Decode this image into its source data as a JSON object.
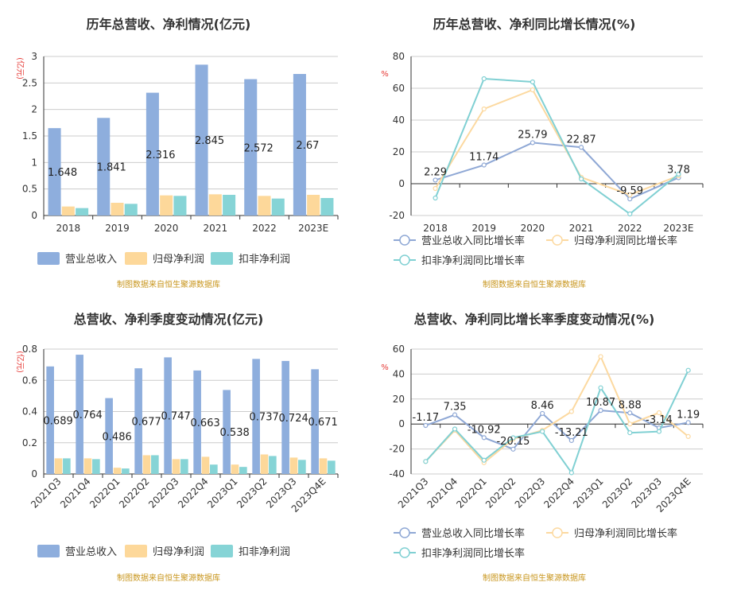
{
  "colors": {
    "revenue": "#8eaedd",
    "net_profit": "#fdd89a",
    "deducted_profit": "#86d4d6",
    "revenue_line": "#8fa8d5",
    "net_profit_line": "#fcd9a0",
    "deducted_line": "#80d0d3",
    "unit_text": "#e53935",
    "source_text": "#c8961e",
    "grid": "#cccccc"
  },
  "charts": [
    {
      "id": "annual-bar",
      "title": "历年总营收、净利情况(亿元)",
      "unit": "(亿元)",
      "source": "制图数据来自恒生聚源数据库",
      "legend": [
        "营业总收入",
        "归母净利润",
        "扣非净利润"
      ]
    },
    {
      "id": "annual-line",
      "title": "历年总营收、净利同比增长情况(%)",
      "unit": "%",
      "source": "制图数据来自恒生聚源数据库",
      "legend": [
        "营业总收入同比增长率",
        "归母净利润同比增长率",
        "扣非净利润同比增长率"
      ]
    },
    {
      "id": "quarter-bar",
      "title": "总营收、净利季度变动情况(亿元)",
      "unit": "(亿元)",
      "source": "制图数据来自恒生聚源数据库",
      "legend": [
        "营业总收入",
        "归母净利润",
        "扣非净利润"
      ]
    },
    {
      "id": "quarter-line",
      "title": "总营收、净利同比增长率季度变动情况(%)",
      "unit": "%",
      "source": "制图数据来自恒生聚源数据库",
      "legend": [
        "营业总收入同比增长率",
        "归母净利润同比增长率",
        "扣非净利润同比增长率"
      ]
    }
  ],
  "chart_data": [
    {
      "type": "bar",
      "title": "历年总营收、净利情况(亿元)",
      "ylabel": "(亿元)",
      "categories": [
        "2018",
        "2019",
        "2020",
        "2021",
        "2022",
        "2023E"
      ],
      "ylim": [
        0,
        3
      ],
      "yticks": [
        "0",
        "0.5",
        "1",
        "1.5",
        "2",
        "2.5",
        "3"
      ],
      "grid": true,
      "legend_position": "bottom",
      "series": [
        {
          "name": "营业总收入",
          "values": [
            1.648,
            1.841,
            2.316,
            2.845,
            2.572,
            2.67
          ],
          "labels": [
            "1.648",
            "1.841",
            "2.316",
            "2.845",
            "2.572",
            "2.67"
          ]
        },
        {
          "name": "归母净利润",
          "values": [
            0.17,
            0.24,
            0.38,
            0.4,
            0.37,
            0.39
          ]
        },
        {
          "name": "扣非净利润",
          "values": [
            0.14,
            0.22,
            0.37,
            0.39,
            0.32,
            0.33
          ]
        }
      ]
    },
    {
      "type": "line",
      "title": "历年总营收、净利同比增长情况(%)",
      "ylabel": "%",
      "categories": [
        "2018",
        "2019",
        "2020",
        "2021",
        "2022",
        "2023E"
      ],
      "ylim": [
        -20,
        80
      ],
      "yticks": [
        "-20",
        "0",
        "20",
        "40",
        "60",
        "80"
      ],
      "grid": true,
      "legend_position": "bottom",
      "series": [
        {
          "name": "营业总收入同比增长率",
          "values": [
            2.29,
            11.74,
            25.79,
            22.87,
            -9.59,
            3.78
          ],
          "labels": [
            "2.29",
            "11.74",
            "25.79",
            "22.87",
            "-9.59",
            "3.78"
          ]
        },
        {
          "name": "归母净利润同比增长率",
          "values": [
            -3,
            47,
            59,
            4,
            -7,
            5
          ]
        },
        {
          "name": "扣非净利润同比增长率",
          "values": [
            -9,
            66,
            64,
            3,
            -19,
            6
          ]
        }
      ]
    },
    {
      "type": "bar",
      "title": "总营收、净利季度变动情况(亿元)",
      "ylabel": "(亿元)",
      "categories": [
        "2021Q3",
        "2021Q4",
        "2022Q1",
        "2022Q2",
        "2022Q3",
        "2022Q4",
        "2023Q1",
        "2023Q2",
        "2023Q3",
        "2023Q4E"
      ],
      "ylim": [
        0,
        0.8
      ],
      "yticks": [
        "0",
        "0.2",
        "0.4",
        "0.6",
        "0.8"
      ],
      "grid": true,
      "legend_position": "bottom",
      "series": [
        {
          "name": "营业总收入",
          "values": [
            0.689,
            0.764,
            0.486,
            0.677,
            0.747,
            0.663,
            0.538,
            0.737,
            0.724,
            0.671
          ],
          "labels": [
            "0.689",
            "0.764",
            "0.486",
            "0.677",
            "0.747",
            "0.663",
            "0.538",
            "0.737",
            "0.724",
            "0.671"
          ]
        },
        {
          "name": "归母净利润",
          "values": [
            0.1,
            0.1,
            0.04,
            0.12,
            0.095,
            0.11,
            0.06,
            0.125,
            0.105,
            0.1
          ]
        },
        {
          "name": "扣非净利润",
          "values": [
            0.1,
            0.095,
            0.035,
            0.12,
            0.095,
            0.06,
            0.045,
            0.115,
            0.09,
            0.085
          ]
        }
      ]
    },
    {
      "type": "line",
      "title": "总营收、净利同比增长率季度变动情况(%)",
      "ylabel": "%",
      "categories": [
        "2021Q3",
        "2021Q4",
        "2022Q1",
        "2022Q2",
        "2022Q3",
        "2022Q4",
        "2023Q1",
        "2023Q2",
        "2023Q3",
        "2023Q4E"
      ],
      "ylim": [
        -40,
        60
      ],
      "yticks": [
        "-40",
        "-20",
        "0",
        "20",
        "40",
        "60"
      ],
      "grid": true,
      "legend_position": "bottom",
      "series": [
        {
          "name": "营业总收入同比增长率",
          "values": [
            -1.17,
            7.35,
            -10.92,
            -20.15,
            8.46,
            -13.21,
            10.87,
            8.88,
            -3.14,
            1.19
          ],
          "labels": [
            "-1.17",
            "7.35",
            "-10.92",
            "-20.15",
            "8.46",
            "-13.21",
            "10.87",
            "8.88",
            "-3.14",
            "1.19"
          ]
        },
        {
          "name": "归母净利润同比增长率",
          "values": [
            -30,
            -5,
            -31,
            -12,
            -5,
            10,
            54,
            0,
            9,
            -10
          ]
        },
        {
          "name": "扣非净利润同比增长率",
          "values": [
            -30,
            -4,
            -29,
            -11,
            -6,
            -39,
            29,
            -7,
            -6,
            43
          ]
        }
      ]
    }
  ]
}
